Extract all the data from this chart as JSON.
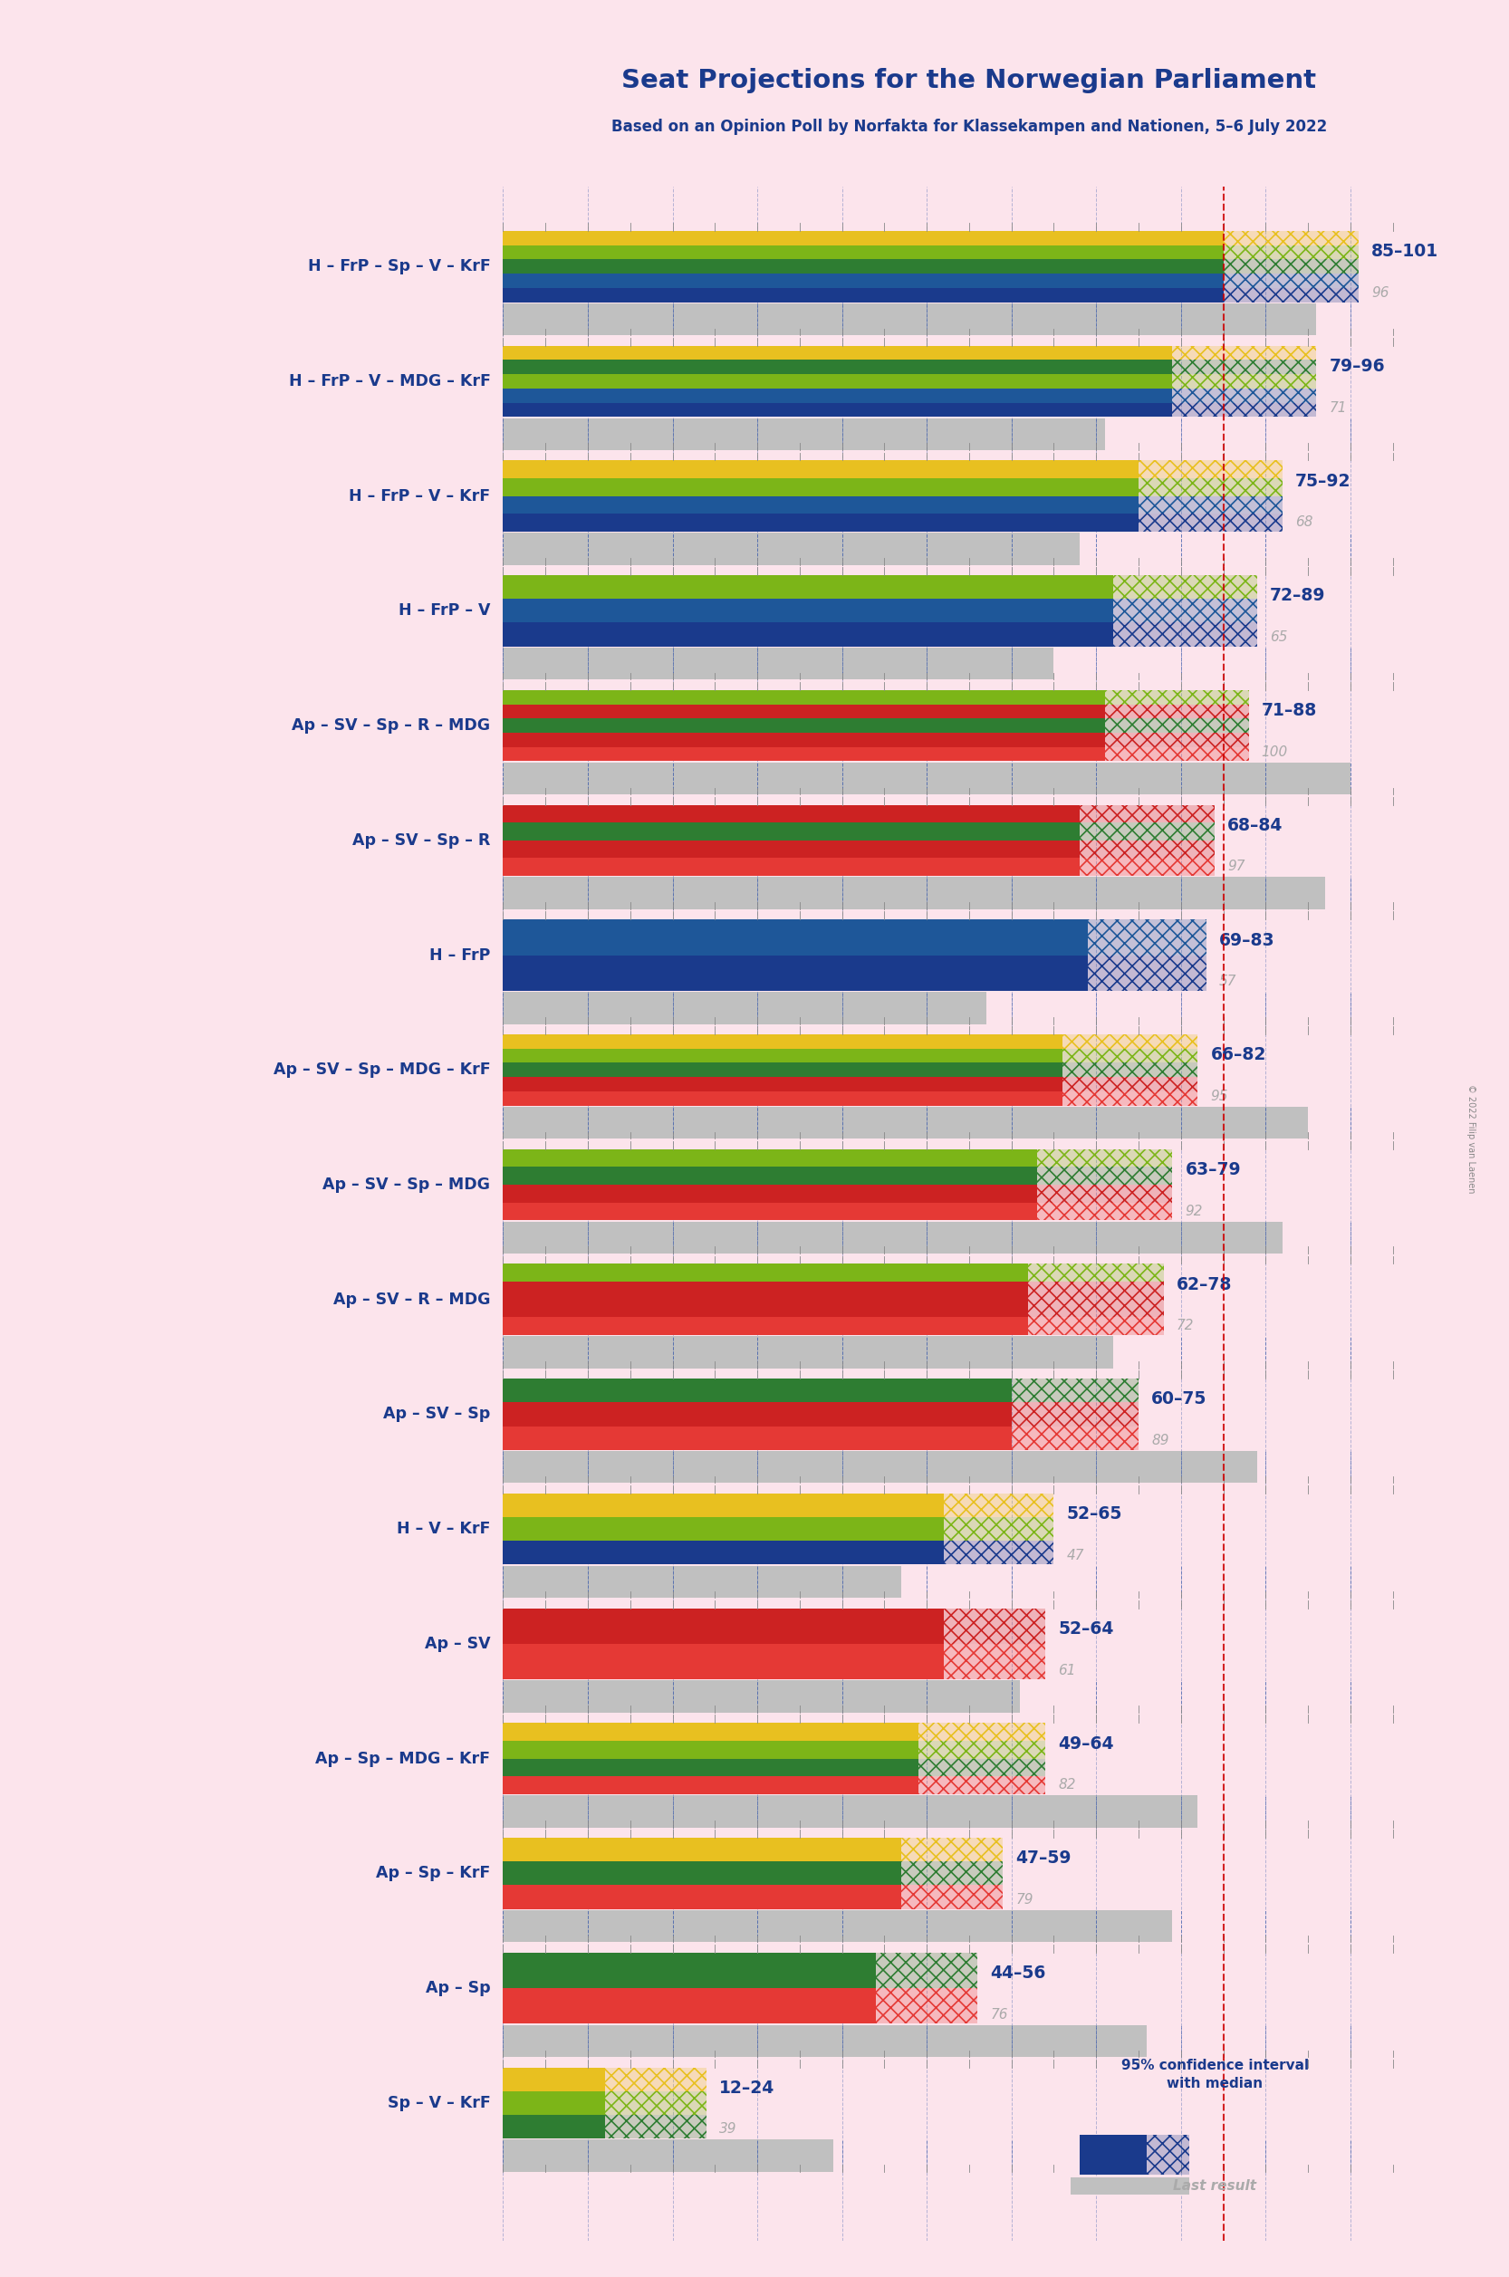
{
  "title": "Seat Projections for the Norwegian Parliament",
  "subtitle": "Based on an Opinion Poll by Norfakta for Klassekampen and Nationen, 5–6 July 2022",
  "copyright": "© 2022 Filip van Laenen",
  "background_color": "#fce4ec",
  "majority_line": 85,
  "x_max": 110,
  "coalitions": [
    {
      "label": "H – FrP – Sp – V – KrF",
      "low": 85,
      "high": 101,
      "last": 96,
      "colors": [
        "#1a3a8c",
        "#1e5799",
        "#2e7d32",
        "#7cb518",
        "#e8c020"
      ],
      "underline": false
    },
    {
      "label": "H – FrP – V – MDG – KrF",
      "low": 79,
      "high": 96,
      "last": 71,
      "colors": [
        "#1a3a8c",
        "#1e5799",
        "#7cb518",
        "#2e7d32",
        "#e8c020"
      ],
      "underline": false
    },
    {
      "label": "H – FrP – V – KrF",
      "low": 75,
      "high": 92,
      "last": 68,
      "colors": [
        "#1a3a8c",
        "#1e5799",
        "#7cb518",
        "#e8c020"
      ],
      "underline": false
    },
    {
      "label": "H – FrP – V",
      "low": 72,
      "high": 89,
      "last": 65,
      "colors": [
        "#1a3a8c",
        "#1e5799",
        "#7cb518"
      ],
      "underline": false
    },
    {
      "label": "Ap – SV – Sp – R – MDG",
      "low": 71,
      "high": 88,
      "last": 100,
      "colors": [
        "#e53935",
        "#cc2222",
        "#2e7d32",
        "#cc2222",
        "#7cb518"
      ],
      "underline": false
    },
    {
      "label": "Ap – SV – Sp – R",
      "low": 68,
      "high": 84,
      "last": 97,
      "colors": [
        "#e53935",
        "#cc2222",
        "#2e7d32",
        "#cc2222"
      ],
      "underline": false
    },
    {
      "label": "H – FrP",
      "low": 69,
      "high": 83,
      "last": 57,
      "colors": [
        "#1a3a8c",
        "#1e5799"
      ],
      "underline": false
    },
    {
      "label": "Ap – SV – Sp – MDG – KrF",
      "low": 66,
      "high": 82,
      "last": 95,
      "colors": [
        "#e53935",
        "#cc2222",
        "#2e7d32",
        "#7cb518",
        "#e8c020"
      ],
      "underline": false
    },
    {
      "label": "Ap – SV – Sp – MDG",
      "low": 63,
      "high": 79,
      "last": 92,
      "colors": [
        "#e53935",
        "#cc2222",
        "#2e7d32",
        "#7cb518"
      ],
      "underline": false
    },
    {
      "label": "Ap – SV – R – MDG",
      "low": 62,
      "high": 78,
      "last": 72,
      "colors": [
        "#e53935",
        "#cc2222",
        "#cc2222",
        "#7cb518"
      ],
      "underline": false
    },
    {
      "label": "Ap – SV – Sp",
      "low": 60,
      "high": 75,
      "last": 89,
      "colors": [
        "#e53935",
        "#cc2222",
        "#2e7d32"
      ],
      "underline": false
    },
    {
      "label": "H – V – KrF",
      "low": 52,
      "high": 65,
      "last": 47,
      "colors": [
        "#1a3a8c",
        "#7cb518",
        "#e8c020"
      ],
      "underline": false
    },
    {
      "label": "Ap – SV",
      "low": 52,
      "high": 64,
      "last": 61,
      "colors": [
        "#e53935",
        "#cc2222"
      ],
      "underline": true
    },
    {
      "label": "Ap – Sp – MDG – KrF",
      "low": 49,
      "high": 64,
      "last": 82,
      "colors": [
        "#e53935",
        "#2e7d32",
        "#7cb518",
        "#e8c020"
      ],
      "underline": false
    },
    {
      "label": "Ap – Sp – KrF",
      "low": 47,
      "high": 59,
      "last": 79,
      "colors": [
        "#e53935",
        "#2e7d32",
        "#e8c020"
      ],
      "underline": false
    },
    {
      "label": "Ap – Sp",
      "low": 44,
      "high": 56,
      "last": 76,
      "colors": [
        "#e53935",
        "#2e7d32"
      ],
      "underline": false
    },
    {
      "label": "Sp – V – KrF",
      "low": 12,
      "high": 24,
      "last": 39,
      "colors": [
        "#2e7d32",
        "#7cb518",
        "#e8c020"
      ],
      "underline": false
    }
  ]
}
